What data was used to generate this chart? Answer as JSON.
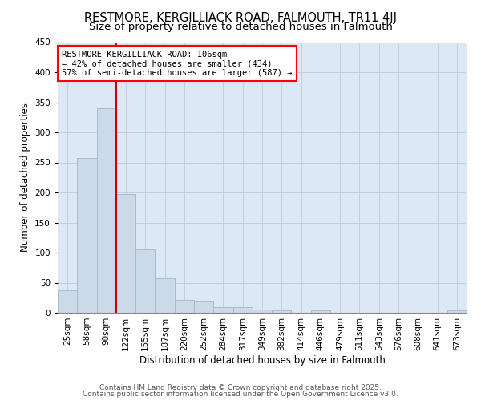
{
  "title1": "RESTMORE, KERGILLIACK ROAD, FALMOUTH, TR11 4JJ",
  "title2": "Size of property relative to detached houses in Falmouth",
  "xlabel": "Distribution of detached houses by size in Falmouth",
  "ylabel": "Number of detached properties",
  "bar_labels": [
    "25sqm",
    "58sqm",
    "90sqm",
    "122sqm",
    "155sqm",
    "187sqm",
    "220sqm",
    "252sqm",
    "284sqm",
    "317sqm",
    "349sqm",
    "382sqm",
    "414sqm",
    "446sqm",
    "479sqm",
    "511sqm",
    "543sqm",
    "576sqm",
    "608sqm",
    "641sqm",
    "673sqm"
  ],
  "bar_heights": [
    37,
    257,
    340,
    198,
    105,
    57,
    21,
    20,
    9,
    9,
    5,
    4,
    0,
    4,
    0,
    0,
    0,
    0,
    0,
    0,
    4
  ],
  "bar_color": "#ccd9e8",
  "bar_edgecolor": "#aabccc",
  "bar_linewidth": 0.7,
  "grid_color": "#b8c8d8",
  "bg_color": "#dce8f4",
  "red_line_color": "#cc0000",
  "annotation_text": "RESTMORE KERGILLIACK ROAD: 106sqm\n← 42% of detached houses are smaller (434)\n57% of semi-detached houses are larger (587) →",
  "ylim": [
    0,
    450
  ],
  "yticks": [
    0,
    50,
    100,
    150,
    200,
    250,
    300,
    350,
    400,
    450
  ],
  "footer1": "Contains HM Land Registry data © Crown copyright and database right 2025.",
  "footer2": "Contains public sector information licensed under the Open Government Licence v3.0.",
  "title1_fontsize": 10.5,
  "title2_fontsize": 9.5,
  "xlabel_fontsize": 8.5,
  "ylabel_fontsize": 8.5,
  "tick_fontsize": 7.5,
  "ann_fontsize": 7.5,
  "footer_fontsize": 6.5
}
